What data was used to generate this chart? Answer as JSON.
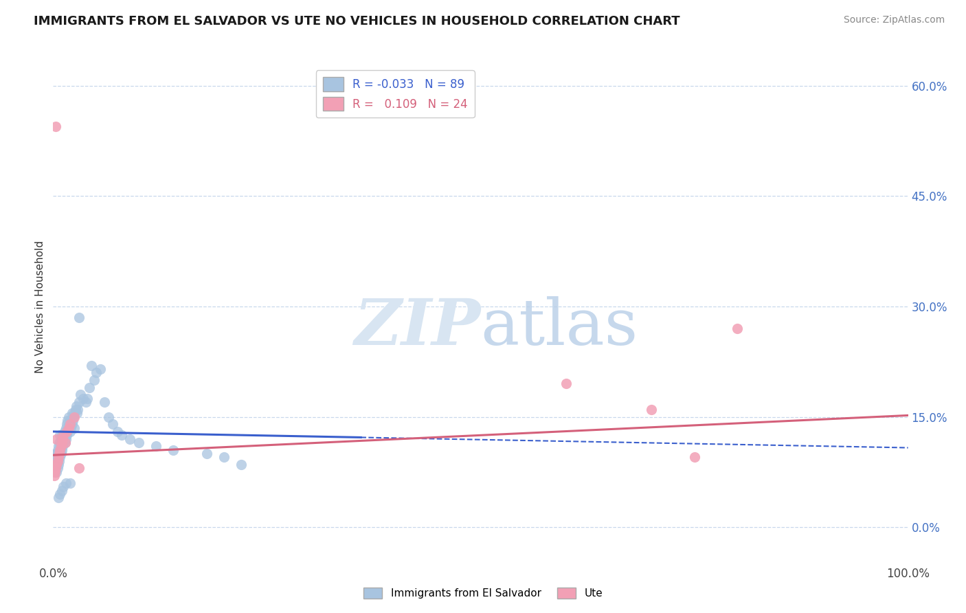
{
  "title": "IMMIGRANTS FROM EL SALVADOR VS UTE NO VEHICLES IN HOUSEHOLD CORRELATION CHART",
  "source": "Source: ZipAtlas.com",
  "ylabel": "No Vehicles in Household",
  "xlim": [
    0.0,
    1.0
  ],
  "ylim": [
    -0.05,
    0.65
  ],
  "yticks": [
    0.0,
    0.15,
    0.3,
    0.45,
    0.6
  ],
  "ytick_labels": [
    "0.0%",
    "15.0%",
    "30.0%",
    "45.0%",
    "60.0%"
  ],
  "xticks": [
    0.0,
    1.0
  ],
  "xtick_labels": [
    "0.0%",
    "100.0%"
  ],
  "legend_labels": [
    "Immigrants from El Salvador",
    "Ute"
  ],
  "blue_R": -0.033,
  "blue_N": 89,
  "pink_R": 0.109,
  "pink_N": 24,
  "blue_color": "#a8c4e0",
  "pink_color": "#f2a0b5",
  "blue_line_color": "#3a5fcd",
  "pink_line_color": "#d4607a",
  "grid_color": "#c8d8ec",
  "watermark_color": "#d8e5f2",
  "blue_line_start_y": 0.13,
  "blue_line_end_y": 0.108,
  "blue_line_solid_end_x": 0.36,
  "pink_line_start_y": 0.098,
  "pink_line_end_y": 0.152,
  "blue_scatter_x": [
    0.001,
    0.002,
    0.002,
    0.003,
    0.003,
    0.003,
    0.004,
    0.004,
    0.004,
    0.004,
    0.005,
    0.005,
    0.005,
    0.005,
    0.006,
    0.006,
    0.006,
    0.007,
    0.007,
    0.007,
    0.008,
    0.008,
    0.008,
    0.008,
    0.009,
    0.009,
    0.009,
    0.01,
    0.01,
    0.01,
    0.011,
    0.011,
    0.012,
    0.012,
    0.013,
    0.013,
    0.014,
    0.014,
    0.015,
    0.015,
    0.016,
    0.016,
    0.017,
    0.017,
    0.018,
    0.018,
    0.019,
    0.02,
    0.02,
    0.021,
    0.022,
    0.022,
    0.023,
    0.024,
    0.025,
    0.026,
    0.027,
    0.028,
    0.029,
    0.03,
    0.032,
    0.035,
    0.038,
    0.04,
    0.042,
    0.045,
    0.048,
    0.05,
    0.055,
    0.06,
    0.065,
    0.07,
    0.075,
    0.08,
    0.09,
    0.1,
    0.12,
    0.14,
    0.18,
    0.2,
    0.22,
    0.03,
    0.025,
    0.02,
    0.015,
    0.012,
    0.01,
    0.008,
    0.006
  ],
  "blue_scatter_y": [
    0.08,
    0.075,
    0.09,
    0.085,
    0.095,
    0.1,
    0.075,
    0.085,
    0.09,
    0.1,
    0.08,
    0.09,
    0.095,
    0.105,
    0.085,
    0.095,
    0.11,
    0.09,
    0.1,
    0.115,
    0.095,
    0.105,
    0.115,
    0.125,
    0.1,
    0.11,
    0.12,
    0.105,
    0.115,
    0.125,
    0.11,
    0.12,
    0.115,
    0.125,
    0.12,
    0.13,
    0.115,
    0.125,
    0.12,
    0.135,
    0.125,
    0.14,
    0.13,
    0.145,
    0.135,
    0.15,
    0.14,
    0.13,
    0.145,
    0.135,
    0.14,
    0.155,
    0.145,
    0.15,
    0.155,
    0.16,
    0.165,
    0.155,
    0.16,
    0.17,
    0.18,
    0.175,
    0.17,
    0.175,
    0.19,
    0.22,
    0.2,
    0.21,
    0.215,
    0.17,
    0.15,
    0.14,
    0.13,
    0.125,
    0.12,
    0.115,
    0.11,
    0.105,
    0.1,
    0.095,
    0.085,
    0.285,
    0.135,
    0.06,
    0.06,
    0.055,
    0.05,
    0.045,
    0.04
  ],
  "pink_scatter_x": [
    0.001,
    0.002,
    0.003,
    0.004,
    0.004,
    0.005,
    0.006,
    0.007,
    0.008,
    0.009,
    0.01,
    0.011,
    0.012,
    0.014,
    0.016,
    0.018,
    0.02,
    0.025,
    0.03,
    0.6,
    0.7,
    0.75,
    0.8,
    0.003
  ],
  "pink_scatter_y": [
    0.07,
    0.075,
    0.08,
    0.085,
    0.12,
    0.09,
    0.095,
    0.1,
    0.105,
    0.11,
    0.115,
    0.12,
    0.125,
    0.115,
    0.13,
    0.135,
    0.14,
    0.15,
    0.08,
    0.195,
    0.16,
    0.095,
    0.27,
    0.545
  ]
}
